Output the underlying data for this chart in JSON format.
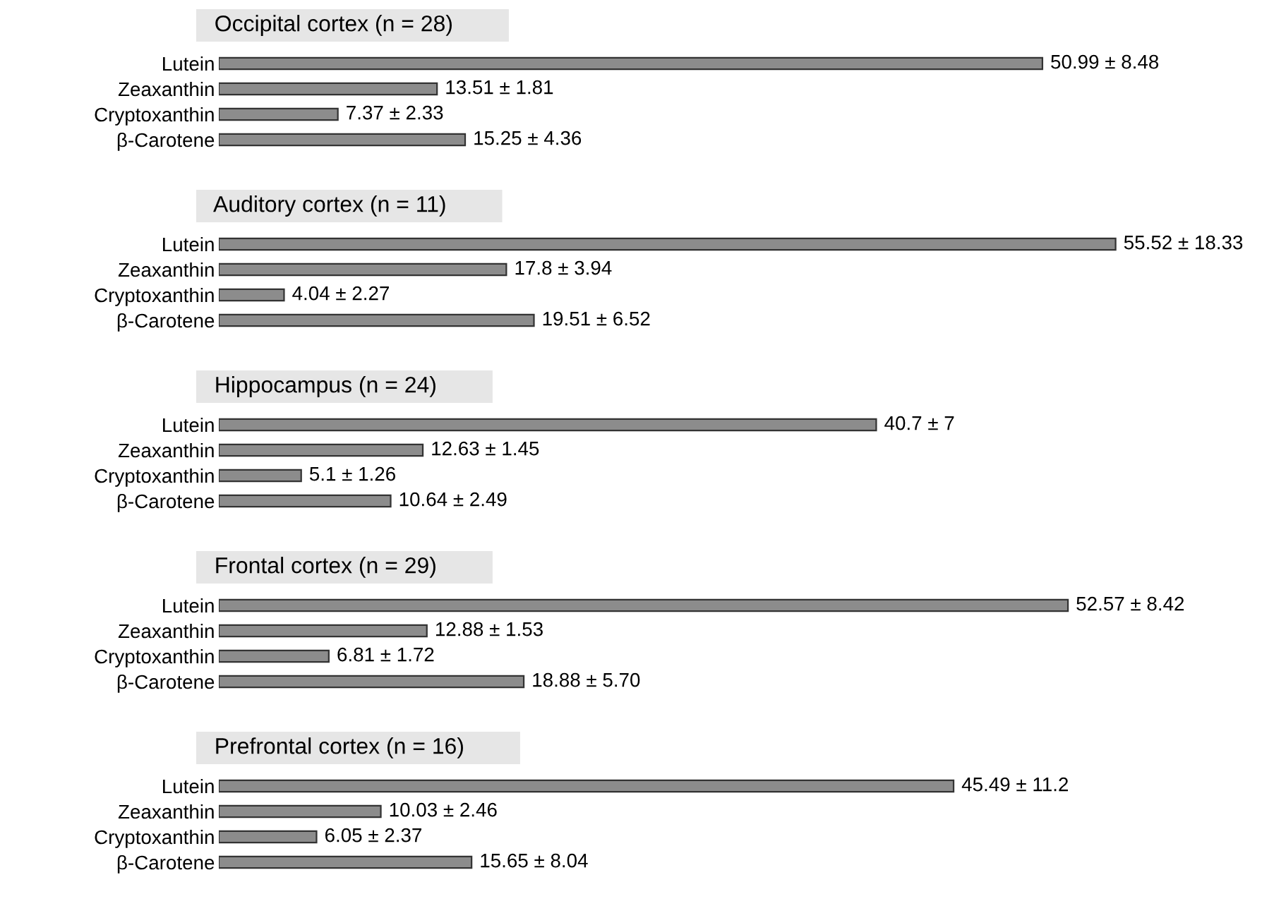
{
  "chart_data": [
    {
      "type": "bar",
      "orientation": "horizontal",
      "title": "Occipital cortex (n = 28)",
      "categories": [
        "Lutein",
        "Zeaxanthin",
        "Cryptoxanthin",
        "β-Carotene"
      ],
      "values": [
        50.99,
        13.51,
        7.37,
        15.25
      ],
      "value_labels": [
        "50.99 ± 8.48",
        "13.51 ± 1.81",
        "7.37 ± 2.33",
        "15.25 ± 4.36"
      ],
      "color": "#8c8c8c"
    },
    {
      "type": "bar",
      "orientation": "horizontal",
      "title": "Auditory cortex (n = 11)",
      "categories": [
        "Lutein",
        "Zeaxanthin",
        "Cryptoxanthin",
        "β-Carotene"
      ],
      "values": [
        55.52,
        17.8,
        4.04,
        19.51
      ],
      "value_labels": [
        "55.52 ± 18.33",
        "17.8 ± 3.94",
        "4.04 ± 2.27",
        "19.51 ± 6.52"
      ],
      "color": "#8c8c8c"
    },
    {
      "type": "bar",
      "orientation": "horizontal",
      "title": "Hippocampus (n = 24)",
      "categories": [
        "Lutein",
        "Zeaxanthin",
        "Cryptoxanthin",
        "β-Carotene"
      ],
      "values": [
        40.7,
        12.63,
        5.1,
        10.64
      ],
      "value_labels": [
        "40.7 ± 7",
        "12.63 ± 1.45",
        "5.1 ± 1.26",
        "10.64 ± 2.49"
      ],
      "color": "#8c8c8c"
    },
    {
      "type": "bar",
      "orientation": "horizontal",
      "title": "Frontal cortex (n = 29)",
      "categories": [
        "Lutein",
        "Zeaxanthin",
        "Cryptoxanthin",
        "β-Carotene"
      ],
      "values": [
        52.57,
        12.88,
        6.81,
        18.88
      ],
      "value_labels": [
        "52.57 ± 8.42",
        "12.88 ± 1.53",
        "6.81 ± 1.72",
        "18.88 ± 5.70"
      ],
      "color": "#8c8c8c"
    },
    {
      "type": "bar",
      "orientation": "horizontal",
      "title": "Prefrontal cortex (n = 16)",
      "categories": [
        "Lutein",
        "Zeaxanthin",
        "Cryptoxanthin",
        "β-Carotene"
      ],
      "values": [
        45.49,
        10.03,
        6.05,
        15.65
      ],
      "value_labels": [
        "45.49 ± 11.2",
        "10.03 ± 2.46",
        "6.05 ± 2.37",
        "15.65 ± 8.04"
      ],
      "color": "#8c8c8c"
    }
  ]
}
